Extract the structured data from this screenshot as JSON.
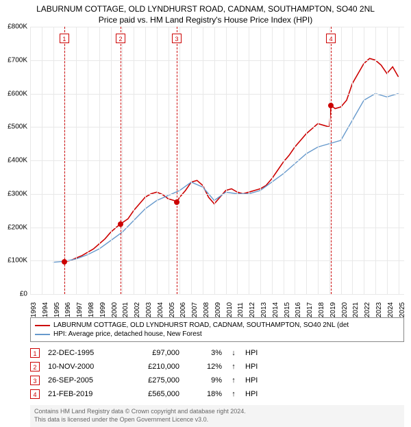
{
  "title": {
    "line1": "LABURNUM COTTAGE, OLD LYNDHURST ROAD, CADNAM, SOUTHAMPTON, SO40 2NL",
    "line2": "Price paid vs. HM Land Registry's House Price Index (HPI)"
  },
  "chart": {
    "type": "line",
    "background_color": "#ffffff",
    "grid_color": "#e8e8e8",
    "x_years": [
      1993,
      1994,
      1995,
      1996,
      1997,
      1998,
      1999,
      2000,
      2001,
      2002,
      2003,
      2004,
      2005,
      2006,
      2007,
      2008,
      2009,
      2010,
      2011,
      2012,
      2013,
      2014,
      2015,
      2016,
      2017,
      2018,
      2019,
      2020,
      2021,
      2022,
      2023,
      2024,
      2025
    ],
    "x_min": 1993,
    "x_max": 2025.5,
    "y_ticks": [
      0,
      100000,
      200000,
      300000,
      400000,
      500000,
      600000,
      700000,
      800000
    ],
    "y_tick_labels": [
      "£0",
      "£100K",
      "£200K",
      "£300K",
      "£400K",
      "£500K",
      "£600K",
      "£700K",
      "£800K"
    ],
    "y_min": 0,
    "y_max": 800000,
    "series": [
      {
        "name": "property",
        "label": "LABURNUM COTTAGE, OLD LYNDHURST ROAD, CADNAM, SOUTHAMPTON, SO40 2NL (det",
        "color": "#cc0000",
        "width": 1.6,
        "segments": [
          [
            [
              1995.97,
              97000
            ],
            [
              1996.5,
              100000
            ],
            [
              1997,
              108000
            ],
            [
              1997.5,
              115000
            ],
            [
              1998,
              125000
            ],
            [
              1998.5,
              135000
            ],
            [
              1999,
              150000
            ],
            [
              1999.5,
              165000
            ],
            [
              2000,
              185000
            ],
            [
              2000.5,
              200000
            ],
            [
              2000.86,
              210000
            ]
          ],
          [
            [
              2000.86,
              210000
            ],
            [
              2001.5,
              225000
            ],
            [
              2002,
              250000
            ],
            [
              2002.5,
              270000
            ],
            [
              2003,
              290000
            ],
            [
              2003.5,
              300000
            ],
            [
              2004,
              305000
            ],
            [
              2004.5,
              298000
            ],
            [
              2005,
              285000
            ],
            [
              2005.5,
              280000
            ],
            [
              2005.74,
              275000
            ]
          ],
          [
            [
              2005.74,
              275000
            ],
            [
              2006,
              290000
            ],
            [
              2006.5,
              310000
            ],
            [
              2007,
              335000
            ],
            [
              2007.5,
              340000
            ],
            [
              2008,
              325000
            ],
            [
              2008.5,
              290000
            ],
            [
              2009,
              270000
            ],
            [
              2009.5,
              290000
            ],
            [
              2010,
              310000
            ],
            [
              2010.5,
              315000
            ],
            [
              2011,
              305000
            ],
            [
              2011.5,
              300000
            ],
            [
              2012,
              305000
            ],
            [
              2012.5,
              310000
            ],
            [
              2013,
              315000
            ],
            [
              2013.5,
              325000
            ],
            [
              2014,
              345000
            ],
            [
              2014.5,
              370000
            ],
            [
              2015,
              395000
            ],
            [
              2015.5,
              415000
            ],
            [
              2016,
              440000
            ],
            [
              2016.5,
              460000
            ],
            [
              2017,
              480000
            ],
            [
              2017.5,
              495000
            ],
            [
              2018,
              510000
            ],
            [
              2018.5,
              505000
            ],
            [
              2019,
              500000
            ],
            [
              2019.14,
              565000
            ]
          ],
          [
            [
              2019.14,
              565000
            ],
            [
              2019.5,
              555000
            ],
            [
              2020,
              560000
            ],
            [
              2020.5,
              580000
            ],
            [
              2021,
              630000
            ],
            [
              2021.5,
              660000
            ],
            [
              2022,
              690000
            ],
            [
              2022.5,
              705000
            ],
            [
              2023,
              700000
            ],
            [
              2023.5,
              685000
            ],
            [
              2024,
              660000
            ],
            [
              2024.5,
              680000
            ],
            [
              2025,
              650000
            ]
          ]
        ]
      },
      {
        "name": "hpi",
        "label": "HPI: Average price, detached house, New Forest",
        "color": "#6699cc",
        "width": 1.4,
        "segments": [
          [
            [
              1995,
              95000
            ],
            [
              1996,
              98000
            ],
            [
              1997,
              105000
            ],
            [
              1998,
              118000
            ],
            [
              1999,
              135000
            ],
            [
              2000,
              160000
            ],
            [
              2001,
              185000
            ],
            [
              2002,
              220000
            ],
            [
              2003,
              255000
            ],
            [
              2004,
              280000
            ],
            [
              2005,
              295000
            ],
            [
              2006,
              310000
            ],
            [
              2007,
              335000
            ],
            [
              2008,
              320000
            ],
            [
              2009,
              280000
            ],
            [
              2010,
              305000
            ],
            [
              2011,
              300000
            ],
            [
              2012,
              300000
            ],
            [
              2013,
              310000
            ],
            [
              2014,
              335000
            ],
            [
              2015,
              360000
            ],
            [
              2016,
              390000
            ],
            [
              2017,
              420000
            ],
            [
              2018,
              440000
            ],
            [
              2019,
              450000
            ],
            [
              2020,
              460000
            ],
            [
              2021,
              520000
            ],
            [
              2022,
              580000
            ],
            [
              2023,
              600000
            ],
            [
              2024,
              590000
            ],
            [
              2025,
              600000
            ]
          ]
        ]
      }
    ],
    "markers": [
      {
        "num": "1",
        "year": 1995.97,
        "value": 97000,
        "box_top": 10
      },
      {
        "num": "2",
        "year": 2000.86,
        "value": 210000,
        "box_top": 10
      },
      {
        "num": "3",
        "year": 2005.74,
        "value": 275000,
        "box_top": 10
      },
      {
        "num": "4",
        "year": 2019.14,
        "value": 565000,
        "box_top": 10
      }
    ],
    "marker_line_color": "#cc0000",
    "marker_dot_color": "#cc0000"
  },
  "sales": [
    {
      "num": "1",
      "date": "22-DEC-1995",
      "price": "£97,000",
      "pct": "3%",
      "arrow": "↓",
      "hpi": "HPI"
    },
    {
      "num": "2",
      "date": "10-NOV-2000",
      "price": "£210,000",
      "pct": "12%",
      "arrow": "↑",
      "hpi": "HPI"
    },
    {
      "num": "3",
      "date": "26-SEP-2005",
      "price": "£275,000",
      "pct": "9%",
      "arrow": "↑",
      "hpi": "HPI"
    },
    {
      "num": "4",
      "date": "21-FEB-2019",
      "price": "£565,000",
      "pct": "18%",
      "arrow": "↑",
      "hpi": "HPI"
    }
  ],
  "footnote": {
    "line1": "Contains HM Land Registry data © Crown copyright and database right 2024.",
    "line2": "This data is licensed under the Open Government Licence v3.0."
  }
}
